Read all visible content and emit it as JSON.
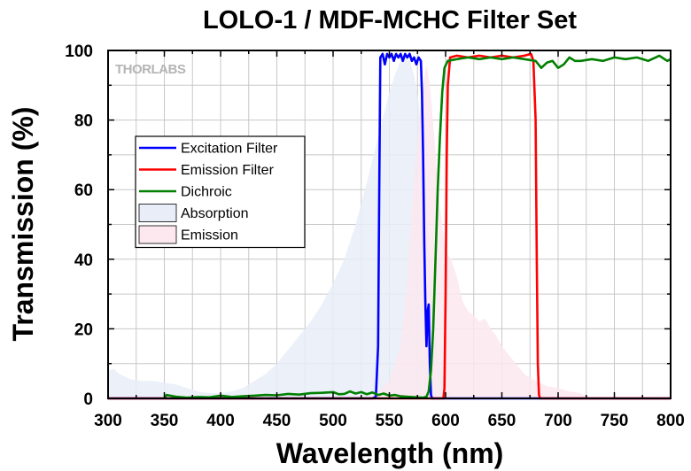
{
  "chart_data": {
    "type": "line",
    "title": "LOLO-1 / MDF-MCHC Filter Set",
    "xlabel": "Wavelength (nm)",
    "ylabel": "Transmission (%)",
    "xlim": [
      300,
      800
    ],
    "ylim": [
      0,
      100
    ],
    "x_ticks": [
      "300",
      "350",
      "400",
      "450",
      "500",
      "550",
      "600",
      "650",
      "700",
      "750",
      "800"
    ],
    "y_ticks": [
      "0",
      "20",
      "40",
      "60",
      "80",
      "100"
    ],
    "grid": true,
    "legend_position": "left",
    "watermark": "THORLABS",
    "series": [
      {
        "name": "Excitation Filter",
        "kind": "line",
        "color": "#0000ff",
        "points": [
          [
            300,
            0
          ],
          [
            535,
            0
          ],
          [
            538,
            0.5
          ],
          [
            540,
            15
          ],
          [
            541,
            60
          ],
          [
            542,
            98
          ],
          [
            544,
            99
          ],
          [
            546,
            96
          ],
          [
            548,
            99
          ],
          [
            550,
            98
          ],
          [
            552,
            99
          ],
          [
            554,
            97
          ],
          [
            556,
            99
          ],
          [
            558,
            98
          ],
          [
            560,
            99
          ],
          [
            562,
            97
          ],
          [
            564,
            99
          ],
          [
            566,
            98
          ],
          [
            568,
            99
          ],
          [
            570,
            97
          ],
          [
            572,
            98
          ],
          [
            574,
            96
          ],
          [
            576,
            98
          ],
          [
            578,
            97
          ],
          [
            579,
            88
          ],
          [
            580,
            70
          ],
          [
            581,
            45
          ],
          [
            582,
            28
          ],
          [
            583,
            15
          ],
          [
            584,
            25
          ],
          [
            585,
            27
          ],
          [
            586,
            10
          ],
          [
            587,
            1
          ],
          [
            588,
            0
          ],
          [
            800,
            0
          ]
        ]
      },
      {
        "name": "Emission Filter",
        "kind": "line",
        "color": "#ff0000",
        "points": [
          [
            300,
            0
          ],
          [
            598,
            0
          ],
          [
            599,
            3
          ],
          [
            600,
            30
          ],
          [
            601,
            70
          ],
          [
            602,
            90
          ],
          [
            604,
            98
          ],
          [
            610,
            98.5
          ],
          [
            620,
            98
          ],
          [
            630,
            98.5
          ],
          [
            640,
            98
          ],
          [
            650,
            98.5
          ],
          [
            660,
            98
          ],
          [
            670,
            98.5
          ],
          [
            676,
            99
          ],
          [
            678,
            97
          ],
          [
            680,
            80
          ],
          [
            681,
            40
          ],
          [
            682,
            10
          ],
          [
            683,
            1
          ],
          [
            684,
            0
          ],
          [
            800,
            0
          ]
        ]
      },
      {
        "name": "Dichroic",
        "kind": "line",
        "color": "#008000",
        "points": [
          [
            350,
            0
          ],
          [
            352,
            1
          ],
          [
            360,
            0.5
          ],
          [
            370,
            0.2
          ],
          [
            380,
            0.4
          ],
          [
            390,
            0.3
          ],
          [
            400,
            0.8
          ],
          [
            410,
            0.4
          ],
          [
            420,
            0.6
          ],
          [
            430,
            0.8
          ],
          [
            440,
            1.0
          ],
          [
            450,
            0.9
          ],
          [
            460,
            1.3
          ],
          [
            470,
            1.1
          ],
          [
            480,
            1.5
          ],
          [
            490,
            1.6
          ],
          [
            500,
            1.8
          ],
          [
            505,
            1.2
          ],
          [
            510,
            1.3
          ],
          [
            515,
            2.0
          ],
          [
            520,
            1.4
          ],
          [
            525,
            1.8
          ],
          [
            530,
            1.2
          ],
          [
            535,
            1.7
          ],
          [
            540,
            1.0
          ],
          [
            545,
            1.4
          ],
          [
            550,
            0.8
          ],
          [
            555,
            1.0
          ],
          [
            560,
            0.6
          ],
          [
            565,
            0.5
          ],
          [
            570,
            0.4
          ],
          [
            575,
            0.3
          ],
          [
            580,
            0.2
          ],
          [
            583,
            0.5
          ],
          [
            585,
            2
          ],
          [
            587,
            8
          ],
          [
            589,
            20
          ],
          [
            591,
            40
          ],
          [
            593,
            60
          ],
          [
            595,
            75
          ],
          [
            597,
            88
          ],
          [
            599,
            95
          ],
          [
            602,
            97
          ],
          [
            610,
            97.5
          ],
          [
            620,
            98
          ],
          [
            630,
            97.5
          ],
          [
            640,
            98
          ],
          [
            650,
            97.5
          ],
          [
            660,
            98
          ],
          [
            670,
            97.5
          ],
          [
            680,
            97
          ],
          [
            685,
            95
          ],
          [
            690,
            96.5
          ],
          [
            695,
            97
          ],
          [
            700,
            95
          ],
          [
            705,
            96
          ],
          [
            710,
            98
          ],
          [
            715,
            97
          ],
          [
            720,
            97
          ],
          [
            730,
            97.5
          ],
          [
            740,
            97
          ],
          [
            750,
            98
          ],
          [
            760,
            97.5
          ],
          [
            770,
            98
          ],
          [
            780,
            97
          ],
          [
            790,
            98.5
          ],
          [
            797,
            97
          ],
          [
            800,
            97.5
          ]
        ]
      },
      {
        "name": "Absorption",
        "kind": "area",
        "color": "#e8edf8",
        "points": [
          [
            300,
            8
          ],
          [
            305,
            8.5
          ],
          [
            310,
            7
          ],
          [
            320,
            5.5
          ],
          [
            330,
            5
          ],
          [
            340,
            5
          ],
          [
            350,
            4.5
          ],
          [
            360,
            4
          ],
          [
            370,
            3
          ],
          [
            380,
            2
          ],
          [
            390,
            1.5
          ],
          [
            400,
            1.5
          ],
          [
            410,
            2
          ],
          [
            420,
            3
          ],
          [
            430,
            5
          ],
          [
            440,
            7
          ],
          [
            450,
            10
          ],
          [
            460,
            14
          ],
          [
            470,
            18
          ],
          [
            480,
            22
          ],
          [
            490,
            27
          ],
          [
            500,
            33
          ],
          [
            510,
            40
          ],
          [
            520,
            50
          ],
          [
            530,
            62
          ],
          [
            540,
            75
          ],
          [
            550,
            88
          ],
          [
            555,
            93
          ],
          [
            560,
            97
          ],
          [
            565,
            98
          ],
          [
            568,
            97
          ],
          [
            572,
            93
          ],
          [
            576,
            85
          ],
          [
            580,
            70
          ],
          [
            585,
            45
          ],
          [
            590,
            20
          ],
          [
            595,
            8
          ],
          [
            600,
            3
          ],
          [
            605,
            1
          ],
          [
            610,
            0.5
          ],
          [
            620,
            0
          ],
          [
            800,
            0
          ]
        ]
      },
      {
        "name": "Emission",
        "kind": "area",
        "color": "#fce8ee",
        "points": [
          [
            530,
            0
          ],
          [
            540,
            2
          ],
          [
            550,
            5
          ],
          [
            560,
            15
          ],
          [
            565,
            30
          ],
          [
            570,
            55
          ],
          [
            575,
            75
          ],
          [
            578,
            85
          ],
          [
            580,
            90
          ],
          [
            583,
            96
          ],
          [
            586,
            90
          ],
          [
            590,
            75
          ],
          [
            595,
            55
          ],
          [
            600,
            42
          ],
          [
            605,
            40
          ],
          [
            610,
            35
          ],
          [
            615,
            28
          ],
          [
            620,
            25
          ],
          [
            625,
            24
          ],
          [
            630,
            22
          ],
          [
            635,
            23
          ],
          [
            640,
            20
          ],
          [
            645,
            18
          ],
          [
            650,
            15
          ],
          [
            655,
            13
          ],
          [
            660,
            11
          ],
          [
            670,
            7
          ],
          [
            680,
            5
          ],
          [
            690,
            3.5
          ],
          [
            700,
            3
          ],
          [
            710,
            2
          ],
          [
            720,
            1.5
          ],
          [
            730,
            0
          ],
          [
            800,
            0
          ]
        ]
      }
    ]
  }
}
